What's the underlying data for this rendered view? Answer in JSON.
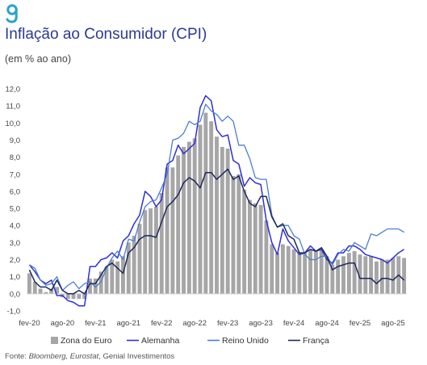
{
  "header": {
    "title": "Inflação ao Consumidor (CPI)",
    "subtitle": "(em % ao ano)",
    "source_prefix": "Fonte: ",
    "source_italic": "Bloomberg, Eurostat",
    "source_suffix": ", Genial Investimentos"
  },
  "colors": {
    "title": "#2b3a8f",
    "bars": "#a6a6a6",
    "alemanha": "#2f2fd6",
    "reino_unido": "#4a7fd1",
    "franca": "#1f2a5c",
    "logo": "#2aa3c8"
  },
  "chart_data": {
    "type": "bar+line",
    "ylim": [
      -1,
      12
    ],
    "yticks": [
      "12,0",
      "11,0",
      "10,0",
      "9,0",
      "8,0",
      "7,0",
      "6,0",
      "5,0",
      "4,0",
      "3,0",
      "2,0",
      "1,0",
      "0,0",
      "-1,0"
    ],
    "ytick_values": [
      12,
      11,
      10,
      9,
      8,
      7,
      6,
      5,
      4,
      3,
      2,
      1,
      0,
      -1
    ],
    "xtick_labels": [
      "fev-20",
      "ago-20",
      "fev-21",
      "ago-21",
      "fev-22",
      "ago-22",
      "fev-23",
      "ago-23",
      "fev-24",
      "ago-24",
      "fev-25",
      "ago-25"
    ],
    "xtick_index": [
      0,
      6,
      12,
      18,
      24,
      30,
      36,
      42,
      48,
      54,
      60,
      66
    ],
    "months": [
      "fev-20",
      "mar-20",
      "abr-20",
      "mai-20",
      "jun-20",
      "jul-20",
      "ago-20",
      "set-20",
      "out-20",
      "nov-20",
      "dez-20",
      "jan-21",
      "fev-21",
      "mar-21",
      "abr-21",
      "mai-21",
      "jun-21",
      "jul-21",
      "ago-21",
      "set-21",
      "out-21",
      "nov-21",
      "dez-21",
      "jan-22",
      "fev-22",
      "mar-22",
      "abr-22",
      "mai-22",
      "jun-22",
      "jul-22",
      "ago-22",
      "set-22",
      "out-22",
      "nov-22",
      "dez-22",
      "jan-23",
      "fev-23",
      "mar-23",
      "abr-23",
      "mai-23",
      "jun-23",
      "jul-23",
      "ago-23",
      "set-23",
      "out-23",
      "nov-23",
      "dez-23",
      "jan-24",
      "fev-24",
      "mar-24",
      "abr-24",
      "mai-24",
      "jun-24",
      "jul-24",
      "ago-24",
      "set-24",
      "out-24",
      "nov-24",
      "dez-24",
      "jan-25",
      "fev-25",
      "mar-25",
      "abr-25",
      "mai-25",
      "jun-25",
      "jul-25",
      "ago-25",
      "set-25",
      "out-25"
    ],
    "legend": [
      "Zona do Euro",
      "Alemanha",
      "Reino Unido",
      "França"
    ],
    "legend_position": "bottom",
    "series": [
      {
        "name": "Zona do Euro",
        "kind": "bar",
        "values": [
          1.2,
          0.7,
          0.3,
          0.1,
          0.3,
          0.4,
          -0.2,
          -0.3,
          -0.3,
          -0.3,
          -0.3,
          0.9,
          0.9,
          1.3,
          1.6,
          2.0,
          1.9,
          2.2,
          3.0,
          3.4,
          4.1,
          4.9,
          5.0,
          5.1,
          5.9,
          7.4,
          7.4,
          8.1,
          8.6,
          8.9,
          9.1,
          9.9,
          10.6,
          10.1,
          9.2,
          8.6,
          8.5,
          6.9,
          7.0,
          6.1,
          5.5,
          5.3,
          5.2,
          4.3,
          2.9,
          2.4,
          2.9,
          2.8,
          2.6,
          2.4,
          2.4,
          2.6,
          2.5,
          2.6,
          2.2,
          1.7,
          2.0,
          2.2,
          2.4,
          2.5,
          2.3,
          2.2,
          2.2,
          1.9,
          2.0,
          2.0,
          2.1,
          2.2,
          2.1
        ]
      },
      {
        "name": "Alemanha",
        "kind": "line",
        "values": [
          1.7,
          1.3,
          0.8,
          0.6,
          0.8,
          -0.1,
          -0.1,
          -0.4,
          -0.5,
          -0.7,
          -0.7,
          1.6,
          1.6,
          2.0,
          2.1,
          2.4,
          2.1,
          3.1,
          3.4,
          4.1,
          4.6,
          6.0,
          5.7,
          5.1,
          5.5,
          7.6,
          7.8,
          8.7,
          8.2,
          8.5,
          8.8,
          10.9,
          11.6,
          11.3,
          9.6,
          9.2,
          9.3,
          7.8,
          7.6,
          6.3,
          6.8,
          6.5,
          6.4,
          4.3,
          3.0,
          2.3,
          3.8,
          3.1,
          2.7,
          2.3,
          2.4,
          2.8,
          2.5,
          2.6,
          2.0,
          1.8,
          2.4,
          2.4,
          2.8,
          2.8,
          2.6,
          2.3,
          2.2,
          2.1,
          2.0,
          1.8,
          2.1,
          2.4,
          2.6
        ]
      },
      {
        "name": "Reino Unido",
        "kind": "line",
        "values": [
          1.7,
          1.5,
          0.8,
          0.5,
          0.6,
          1.0,
          0.2,
          0.5,
          0.7,
          0.3,
          0.6,
          0.7,
          0.4,
          0.7,
          1.5,
          2.1,
          2.5,
          2.0,
          3.2,
          3.1,
          4.2,
          5.1,
          5.4,
          5.5,
          6.2,
          7.0,
          9.0,
          9.1,
          9.4,
          10.1,
          9.9,
          10.1,
          11.1,
          10.7,
          10.5,
          10.1,
          10.4,
          10.1,
          8.7,
          8.7,
          7.9,
          6.8,
          6.7,
          6.7,
          4.6,
          3.9,
          4.0,
          4.0,
          3.4,
          3.2,
          2.3,
          2.0,
          2.0,
          2.2,
          2.2,
          1.7,
          2.3,
          2.6,
          2.5,
          3.0,
          2.8,
          2.6,
          3.5,
          3.4,
          3.6,
          3.8,
          3.8,
          3.8,
          3.6
        ]
      },
      {
        "name": "França",
        "kind": "line",
        "values": [
          1.4,
          0.7,
          0.4,
          0.4,
          0.2,
          0.8,
          0.2,
          0.0,
          0.0,
          0.2,
          0.0,
          0.6,
          0.6,
          1.1,
          1.6,
          1.8,
          1.5,
          1.2,
          2.4,
          2.7,
          3.2,
          3.4,
          3.4,
          3.3,
          4.2,
          5.1,
          5.4,
          5.8,
          6.5,
          6.8,
          6.6,
          6.2,
          7.1,
          7.1,
          6.7,
          7.0,
          7.3,
          6.7,
          6.9,
          6.0,
          5.3,
          5.1,
          5.7,
          5.7,
          4.5,
          3.9,
          4.1,
          3.4,
          3.2,
          2.4,
          2.4,
          2.6,
          2.5,
          2.7,
          2.2,
          1.4,
          1.6,
          1.7,
          1.8,
          1.8,
          0.9,
          0.9,
          0.9,
          0.6,
          0.9,
          0.9,
          0.8,
          1.1,
          0.8
        ]
      }
    ]
  }
}
